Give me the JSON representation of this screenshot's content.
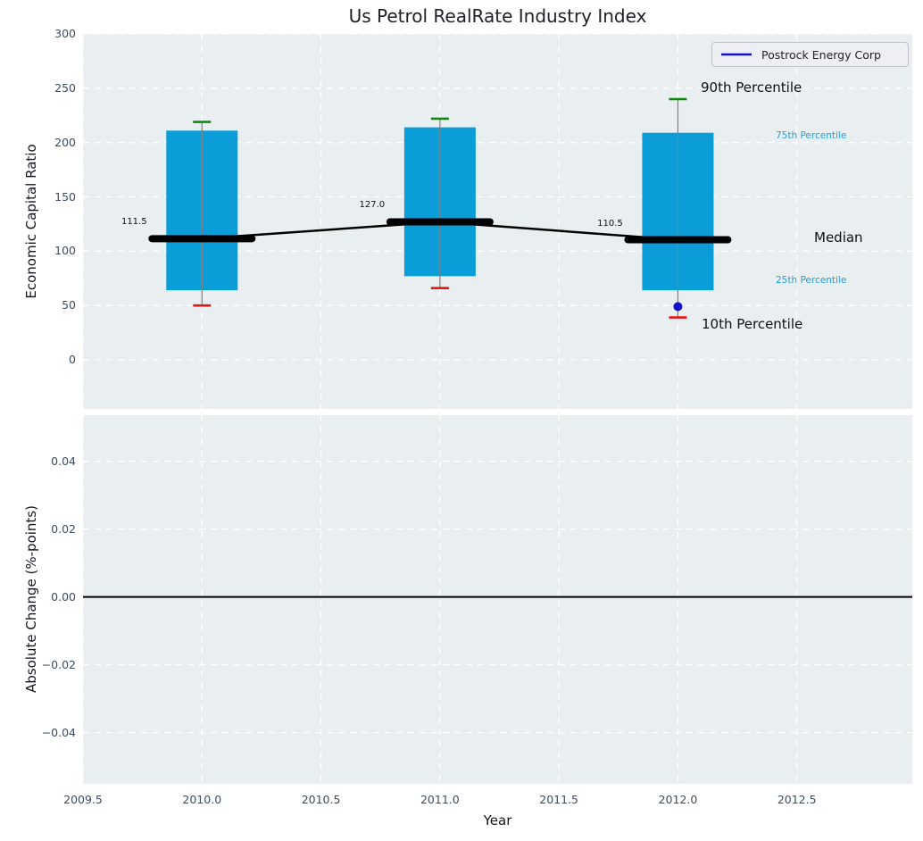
{
  "title": "Us Petrol RealRate Industry Index",
  "xlabel": "Year",
  "xticks": [
    {
      "v": 2009.5,
      "label": "2009.5"
    },
    {
      "v": 2010.0,
      "label": "2010.0"
    },
    {
      "v": 2010.5,
      "label": "2010.5"
    },
    {
      "v": 2011.0,
      "label": "2011.0"
    },
    {
      "v": 2011.5,
      "label": "2011.5"
    },
    {
      "v": 2012.0,
      "label": "2012.0"
    },
    {
      "v": 2012.5,
      "label": "2012.5"
    }
  ],
  "legend": {
    "label": "Postrock Energy Corp"
  },
  "colors": {
    "box_fill": "#0b9dd8",
    "p90_cap": "#0a8c0a",
    "p10_cap": "#e81414",
    "median_line": "#000000",
    "whisker": "#7f7f7f",
    "company": "#1212cd",
    "grid": "#ffffff",
    "panel_bg": "#e9eef0",
    "tick_text": "#3d4c63",
    "percentile_text": "#1f9ed6",
    "zero_line": "#000000"
  },
  "chart_data": [
    {
      "type": "boxplot",
      "title": "Us Petrol RealRate Industry Index",
      "ylabel": "Economic Capital Ratio",
      "xlim": [
        2009.5,
        2012.985
      ],
      "ylim": [
        -45.2,
        300
      ],
      "grid": true,
      "yticks": [
        {
          "v": 0,
          "label": "0"
        },
        {
          "v": 50,
          "label": "50"
        },
        {
          "v": 100,
          "label": "100"
        },
        {
          "v": 150,
          "label": "150"
        },
        {
          "v": 200,
          "label": "200"
        },
        {
          "v": 250,
          "label": "250"
        },
        {
          "v": 300,
          "label": "300"
        }
      ],
      "boxes": [
        {
          "year": 2010,
          "p10": 50,
          "p25": 64,
          "median": 111.5,
          "p75": 211,
          "p90": 219,
          "median_label": "111.5"
        },
        {
          "year": 2011,
          "p10": 66,
          "p25": 77,
          "median": 127.0,
          "p75": 214,
          "p90": 222,
          "median_label": "127.0"
        },
        {
          "year": 2012,
          "p10": 39,
          "p25": 64,
          "median": 110.5,
          "p75": 209,
          "p90": 240,
          "median_label": "110.5"
        }
      ],
      "company_point": {
        "year": 2012,
        "value": 49,
        "name": "Postrock Energy Corp"
      },
      "annotations": {
        "p90": "90th Percentile",
        "p75": "75th Percentile",
        "median": "Median",
        "p25": "25th Percentile",
        "p10": "10th Percentile"
      },
      "legend_position": "upper right"
    },
    {
      "type": "line",
      "ylabel": "Absolute Change (%-points)",
      "xlabel": "Year",
      "xlim": [
        2009.5,
        2012.985
      ],
      "ylim": [
        -0.0551,
        0.0536
      ],
      "grid": true,
      "yticks": [
        {
          "v": 0.04,
          "label": "0.04"
        },
        {
          "v": 0.02,
          "label": "0.02"
        },
        {
          "v": 0.0,
          "label": "0.00"
        },
        {
          "v": -0.02,
          "label": "−0.02"
        },
        {
          "v": -0.04,
          "label": "−0.04"
        }
      ],
      "zero_line": 0,
      "series": []
    }
  ]
}
